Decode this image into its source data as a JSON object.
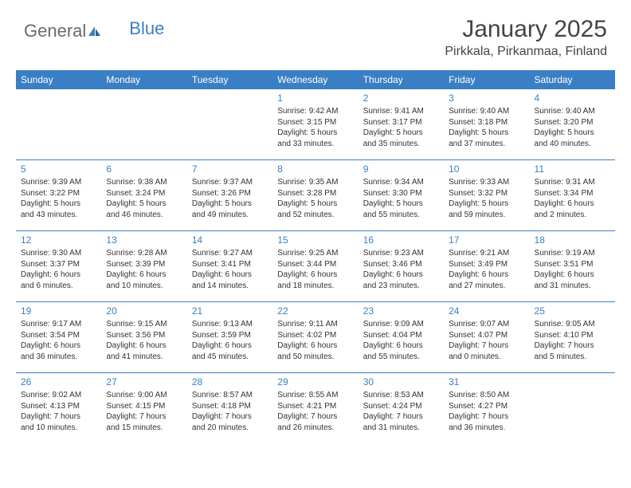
{
  "brand": {
    "name1": "General",
    "name2": "Blue"
  },
  "title": "January 2025",
  "location": "Pirkkala, Pirkanmaa, Finland",
  "colors": {
    "accent": "#3a7fc4",
    "text": "#333333",
    "bg": "#ffffff"
  },
  "day_names": [
    "Sunday",
    "Monday",
    "Tuesday",
    "Wednesday",
    "Thursday",
    "Friday",
    "Saturday"
  ],
  "weeks": [
    [
      null,
      null,
      null,
      {
        "n": "1",
        "sr": "Sunrise: 9:42 AM",
        "ss": "Sunset: 3:15 PM",
        "d1": "Daylight: 5 hours",
        "d2": "and 33 minutes."
      },
      {
        "n": "2",
        "sr": "Sunrise: 9:41 AM",
        "ss": "Sunset: 3:17 PM",
        "d1": "Daylight: 5 hours",
        "d2": "and 35 minutes."
      },
      {
        "n": "3",
        "sr": "Sunrise: 9:40 AM",
        "ss": "Sunset: 3:18 PM",
        "d1": "Daylight: 5 hours",
        "d2": "and 37 minutes."
      },
      {
        "n": "4",
        "sr": "Sunrise: 9:40 AM",
        "ss": "Sunset: 3:20 PM",
        "d1": "Daylight: 5 hours",
        "d2": "and 40 minutes."
      }
    ],
    [
      {
        "n": "5",
        "sr": "Sunrise: 9:39 AM",
        "ss": "Sunset: 3:22 PM",
        "d1": "Daylight: 5 hours",
        "d2": "and 43 minutes."
      },
      {
        "n": "6",
        "sr": "Sunrise: 9:38 AM",
        "ss": "Sunset: 3:24 PM",
        "d1": "Daylight: 5 hours",
        "d2": "and 46 minutes."
      },
      {
        "n": "7",
        "sr": "Sunrise: 9:37 AM",
        "ss": "Sunset: 3:26 PM",
        "d1": "Daylight: 5 hours",
        "d2": "and 49 minutes."
      },
      {
        "n": "8",
        "sr": "Sunrise: 9:35 AM",
        "ss": "Sunset: 3:28 PM",
        "d1": "Daylight: 5 hours",
        "d2": "and 52 minutes."
      },
      {
        "n": "9",
        "sr": "Sunrise: 9:34 AM",
        "ss": "Sunset: 3:30 PM",
        "d1": "Daylight: 5 hours",
        "d2": "and 55 minutes."
      },
      {
        "n": "10",
        "sr": "Sunrise: 9:33 AM",
        "ss": "Sunset: 3:32 PM",
        "d1": "Daylight: 5 hours",
        "d2": "and 59 minutes."
      },
      {
        "n": "11",
        "sr": "Sunrise: 9:31 AM",
        "ss": "Sunset: 3:34 PM",
        "d1": "Daylight: 6 hours",
        "d2": "and 2 minutes."
      }
    ],
    [
      {
        "n": "12",
        "sr": "Sunrise: 9:30 AM",
        "ss": "Sunset: 3:37 PM",
        "d1": "Daylight: 6 hours",
        "d2": "and 6 minutes."
      },
      {
        "n": "13",
        "sr": "Sunrise: 9:28 AM",
        "ss": "Sunset: 3:39 PM",
        "d1": "Daylight: 6 hours",
        "d2": "and 10 minutes."
      },
      {
        "n": "14",
        "sr": "Sunrise: 9:27 AM",
        "ss": "Sunset: 3:41 PM",
        "d1": "Daylight: 6 hours",
        "d2": "and 14 minutes."
      },
      {
        "n": "15",
        "sr": "Sunrise: 9:25 AM",
        "ss": "Sunset: 3:44 PM",
        "d1": "Daylight: 6 hours",
        "d2": "and 18 minutes."
      },
      {
        "n": "16",
        "sr": "Sunrise: 9:23 AM",
        "ss": "Sunset: 3:46 PM",
        "d1": "Daylight: 6 hours",
        "d2": "and 23 minutes."
      },
      {
        "n": "17",
        "sr": "Sunrise: 9:21 AM",
        "ss": "Sunset: 3:49 PM",
        "d1": "Daylight: 6 hours",
        "d2": "and 27 minutes."
      },
      {
        "n": "18",
        "sr": "Sunrise: 9:19 AM",
        "ss": "Sunset: 3:51 PM",
        "d1": "Daylight: 6 hours",
        "d2": "and 31 minutes."
      }
    ],
    [
      {
        "n": "19",
        "sr": "Sunrise: 9:17 AM",
        "ss": "Sunset: 3:54 PM",
        "d1": "Daylight: 6 hours",
        "d2": "and 36 minutes."
      },
      {
        "n": "20",
        "sr": "Sunrise: 9:15 AM",
        "ss": "Sunset: 3:56 PM",
        "d1": "Daylight: 6 hours",
        "d2": "and 41 minutes."
      },
      {
        "n": "21",
        "sr": "Sunrise: 9:13 AM",
        "ss": "Sunset: 3:59 PM",
        "d1": "Daylight: 6 hours",
        "d2": "and 45 minutes."
      },
      {
        "n": "22",
        "sr": "Sunrise: 9:11 AM",
        "ss": "Sunset: 4:02 PM",
        "d1": "Daylight: 6 hours",
        "d2": "and 50 minutes."
      },
      {
        "n": "23",
        "sr": "Sunrise: 9:09 AM",
        "ss": "Sunset: 4:04 PM",
        "d1": "Daylight: 6 hours",
        "d2": "and 55 minutes."
      },
      {
        "n": "24",
        "sr": "Sunrise: 9:07 AM",
        "ss": "Sunset: 4:07 PM",
        "d1": "Daylight: 7 hours",
        "d2": "and 0 minutes."
      },
      {
        "n": "25",
        "sr": "Sunrise: 9:05 AM",
        "ss": "Sunset: 4:10 PM",
        "d1": "Daylight: 7 hours",
        "d2": "and 5 minutes."
      }
    ],
    [
      {
        "n": "26",
        "sr": "Sunrise: 9:02 AM",
        "ss": "Sunset: 4:13 PM",
        "d1": "Daylight: 7 hours",
        "d2": "and 10 minutes."
      },
      {
        "n": "27",
        "sr": "Sunrise: 9:00 AM",
        "ss": "Sunset: 4:15 PM",
        "d1": "Daylight: 7 hours",
        "d2": "and 15 minutes."
      },
      {
        "n": "28",
        "sr": "Sunrise: 8:57 AM",
        "ss": "Sunset: 4:18 PM",
        "d1": "Daylight: 7 hours",
        "d2": "and 20 minutes."
      },
      {
        "n": "29",
        "sr": "Sunrise: 8:55 AM",
        "ss": "Sunset: 4:21 PM",
        "d1": "Daylight: 7 hours",
        "d2": "and 26 minutes."
      },
      {
        "n": "30",
        "sr": "Sunrise: 8:53 AM",
        "ss": "Sunset: 4:24 PM",
        "d1": "Daylight: 7 hours",
        "d2": "and 31 minutes."
      },
      {
        "n": "31",
        "sr": "Sunrise: 8:50 AM",
        "ss": "Sunset: 4:27 PM",
        "d1": "Daylight: 7 hours",
        "d2": "and 36 minutes."
      },
      null
    ]
  ]
}
